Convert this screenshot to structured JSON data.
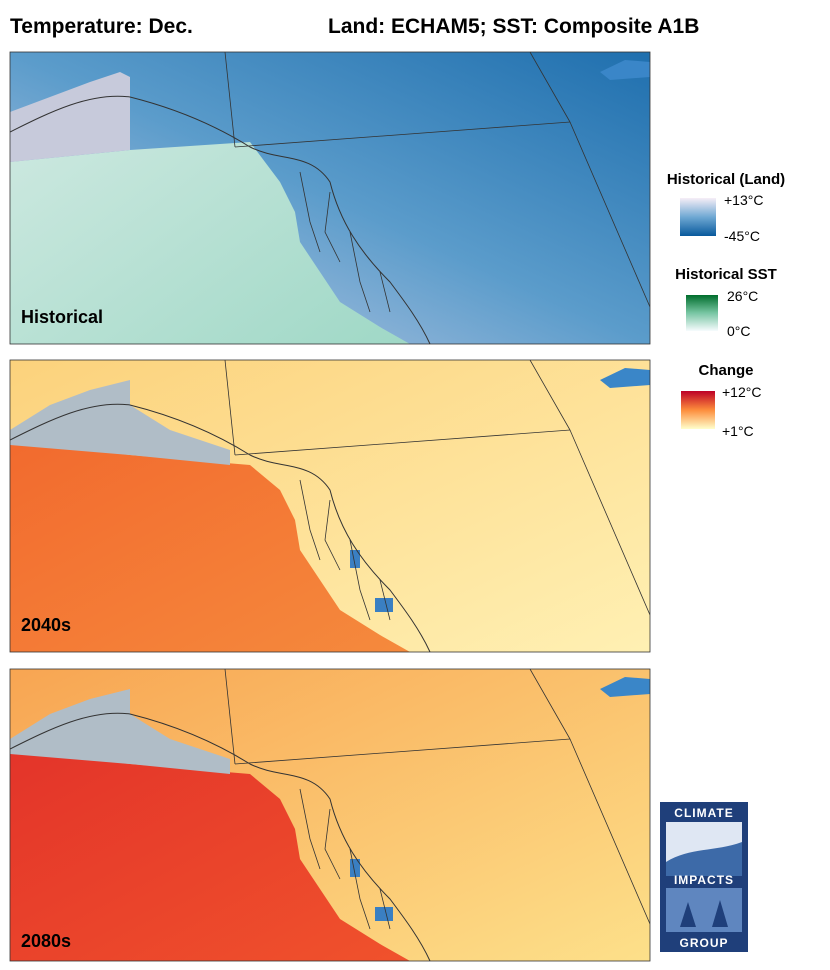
{
  "header": {
    "title": "Temperature: Dec.",
    "subtitle": "Land: ECHAM5; SST: Composite A1B"
  },
  "panels": [
    {
      "label": "Historical"
    },
    {
      "label": "2040s"
    },
    {
      "label": "2080s"
    }
  ],
  "legends": [
    {
      "title": "Historical (Land)",
      "max": "+13°C",
      "min": "-45°C"
    },
    {
      "title": "Historical SST",
      "max": "26°C",
      "min": "0°C"
    },
    {
      "title": "Change",
      "max": "+12°C",
      "min": "+1°C"
    }
  ],
  "logo": {
    "top": "CLIMATE",
    "middle": "IMPACTS",
    "bottom": "GROUP"
  }
}
